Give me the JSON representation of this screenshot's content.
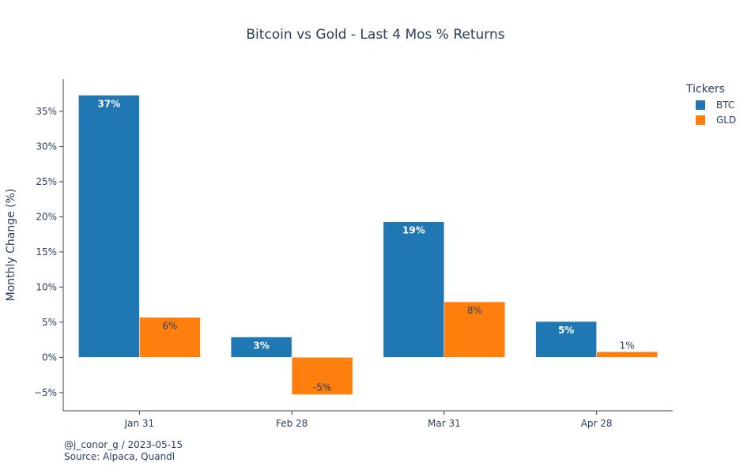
{
  "chart_data": {
    "type": "bar",
    "title": "Bitcoin vs Gold - Last 4 Mos % Returns",
    "xlabel": "",
    "ylabel": "Monthly Change (%)",
    "categories": [
      "Jan 31",
      "Feb 28",
      "Mar 31",
      "Apr 28"
    ],
    "ylim": [
      -7.6,
      39.6
    ],
    "yticks": [
      -5,
      0,
      5,
      10,
      15,
      20,
      25,
      30,
      35
    ],
    "ytick_labels": [
      "−5%",
      "0%",
      "5%",
      "10%",
      "15%",
      "20%",
      "25%",
      "30%",
      "35%"
    ],
    "grid": false,
    "legend_title": "Tickers",
    "legend_position": "top-right",
    "series": [
      {
        "name": "BTC",
        "color": "#1f77b4",
        "values": [
          37.3,
          2.9,
          19.3,
          5.1
        ],
        "labels": [
          "37%",
          "3%",
          "19%",
          "5%"
        ]
      },
      {
        "name": "GLD",
        "color": "#ff7f0e",
        "values": [
          5.7,
          -5.3,
          7.9,
          0.8
        ],
        "labels": [
          "6%",
          "-5%",
          "8%",
          "1%"
        ]
      }
    ]
  },
  "footer": {
    "line1": "@j_conor_g / 2023-05-15",
    "line2": "Source: Alpaca, Quandl"
  }
}
